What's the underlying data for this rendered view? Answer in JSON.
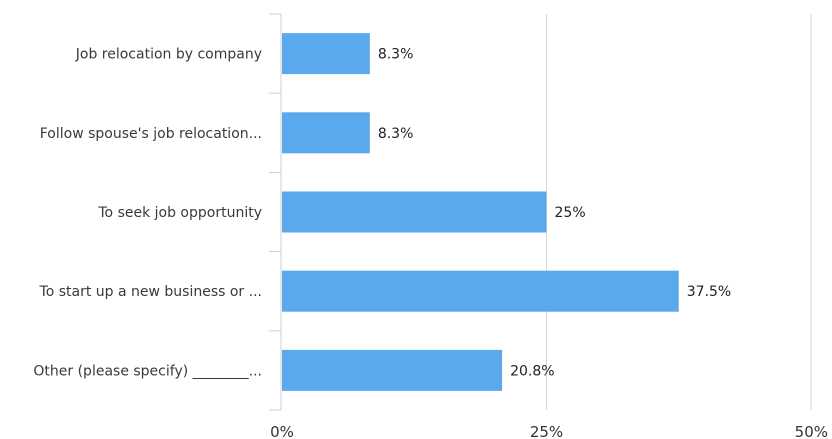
{
  "chart_data": {
    "type": "bar",
    "orientation": "horizontal",
    "categories": [
      "Job relocation by company",
      "Follow spouse's job relocation...",
      "To seek job opportunity",
      "To start up a new business or ...",
      "Other (please specify) ________..."
    ],
    "values": [
      8.3,
      8.3,
      25,
      37.5,
      20.8
    ],
    "value_labels": [
      "8.3%",
      "8.3%",
      "25%",
      "37.5%",
      "20.8%"
    ],
    "xlim": [
      0,
      50
    ],
    "x_ticks": [
      0,
      25,
      50
    ],
    "x_tick_labels": [
      "0%",
      "25%",
      "50%"
    ],
    "grid": true,
    "title": "",
    "xlabel": "",
    "ylabel": "",
    "bar_color": "#5aa9ec",
    "grid_color": "#d9d9d9"
  }
}
